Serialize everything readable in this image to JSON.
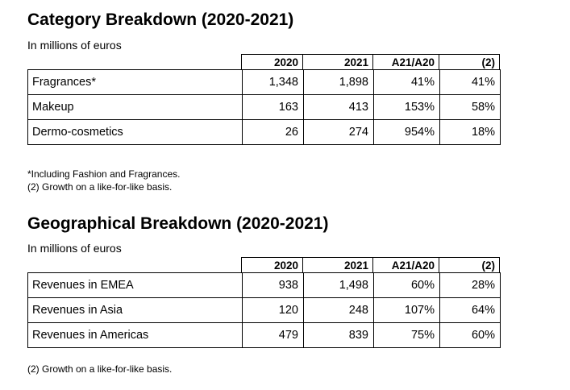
{
  "category": {
    "title": "Category Breakdown (2020-2021)",
    "unit": "In millions of euros",
    "headers": [
      "2020",
      "2021",
      "A21/A20",
      "(2)"
    ],
    "rows": [
      {
        "label": "Fragrances*",
        "v2020": "1,348",
        "v2021": "1,898",
        "growth": "41%",
        "lfl": "41%"
      },
      {
        "label": "Makeup",
        "v2020": "163",
        "v2021": "413",
        "growth": "153%",
        "lfl": "58%"
      },
      {
        "label": "Dermo-cosmetics",
        "v2020": "26",
        "v2021": "274",
        "growth": "954%",
        "lfl": "18%"
      }
    ],
    "notes": [
      "*Including Fashion and Fragrances.",
      "(2) Growth on a like-for-like basis."
    ]
  },
  "geographical": {
    "title": "Geographical Breakdown (2020-2021)",
    "unit": "In millions of euros",
    "headers": [
      "2020",
      "2021",
      "A21/A20",
      "(2)"
    ],
    "rows": [
      {
        "label": "Revenues in EMEA",
        "v2020": "938",
        "v2021": "1,498",
        "growth": "60%",
        "lfl": "28%"
      },
      {
        "label": "Revenues in Asia",
        "v2020": "120",
        "v2021": "248",
        "growth": "107%",
        "lfl": "64%"
      },
      {
        "label": "Revenues in Americas",
        "v2020": "479",
        "v2021": "839",
        "growth": "75%",
        "lfl": "60%"
      }
    ],
    "notes": [
      "(2) Growth on a like-for-like basis."
    ]
  }
}
